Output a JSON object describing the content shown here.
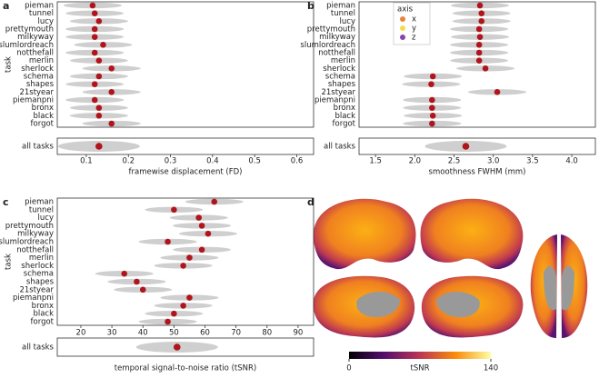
{
  "chart_data": [
    {
      "type": "violin",
      "panel": "a",
      "ylabel": "task",
      "xlabel": "framewise displacement (FD)",
      "categories": [
        "pieman",
        "tunnel",
        "lucy",
        "prettymouth",
        "milkyway",
        "slumlordreach",
        "notthefall",
        "merlin",
        "sherlock",
        "schema",
        "shapes",
        "21styear",
        "piemanpni",
        "bronx",
        "black",
        "forgot"
      ],
      "values": [
        0.115,
        0.12,
        0.13,
        0.12,
        0.12,
        0.14,
        0.12,
        0.13,
        0.16,
        0.13,
        0.12,
        0.16,
        0.12,
        0.13,
        0.13,
        0.16
      ],
      "summary_label": "all tasks",
      "summary_value": 0.13,
      "color": "#b0141c",
      "xlim": [
        0.031,
        0.64
      ],
      "xticks": [
        0.1,
        0.2,
        0.3,
        0.4,
        0.5,
        0.6
      ]
    },
    {
      "type": "violin",
      "panel": "b",
      "xlabel": "smoothness FWHM (mm)",
      "categories": [
        "pieman",
        "tunnel",
        "lucy",
        "prettymouth",
        "milkyway",
        "slumlordreach",
        "notthefall",
        "merlin",
        "sherlock",
        "schema",
        "shapes",
        "21styear",
        "piemanpni",
        "bronx",
        "black",
        "forgot"
      ],
      "values": [
        2.83,
        2.85,
        2.85,
        2.82,
        2.83,
        2.82,
        2.82,
        2.82,
        2.9,
        2.23,
        2.21,
        3.05,
        2.22,
        2.22,
        2.23,
        2.22
      ],
      "summary_label": "all tasks",
      "summary_value": 2.65,
      "color": "#b0141c",
      "xlim": [
        1.29,
        4.3
      ],
      "xticks": [
        1.5,
        {
          "value": 2,
          "label": "2.0"
        },
        2.5,
        {
          "value": 3,
          "label": "3.0"
        },
        3.5,
        {
          "value": 4,
          "label": "4.0"
        }
      ],
      "legend": {
        "title": "axis",
        "entries": [
          {
            "name": "x",
            "color": "#e8833a"
          },
          {
            "name": "y",
            "color": "#f0dc4e"
          },
          {
            "name": "z",
            "color": "#8a44b0"
          }
        ]
      }
    },
    {
      "type": "violin",
      "panel": "c",
      "ylabel": "task",
      "xlabel": "temporal signal-to-noise ratio (tSNR)",
      "categories": [
        "pieman",
        "tunnel",
        "lucy",
        "prettymouth",
        "milkyway",
        "slumlordreach",
        "notthefall",
        "merlin",
        "sherlock",
        "schema",
        "shapes",
        "21styear",
        "piemanpni",
        "bronx",
        "black",
        "forgot"
      ],
      "values": [
        63,
        50,
        58,
        59,
        61,
        48,
        59,
        55,
        53,
        34,
        38,
        40,
        55,
        53,
        50,
        48
      ],
      "summary_label": "all tasks",
      "summary_value": 51,
      "color": "#b0141c",
      "xlim": [
        12.4,
        95
      ],
      "xticks": [
        20,
        30,
        40,
        50,
        60,
        70,
        80,
        90
      ]
    },
    {
      "type": "brain",
      "panel": "d",
      "colorbar": {
        "label": "tSNR",
        "lim": [
          0,
          140
        ],
        "ticks": [
          0,
          140
        ]
      }
    }
  ]
}
